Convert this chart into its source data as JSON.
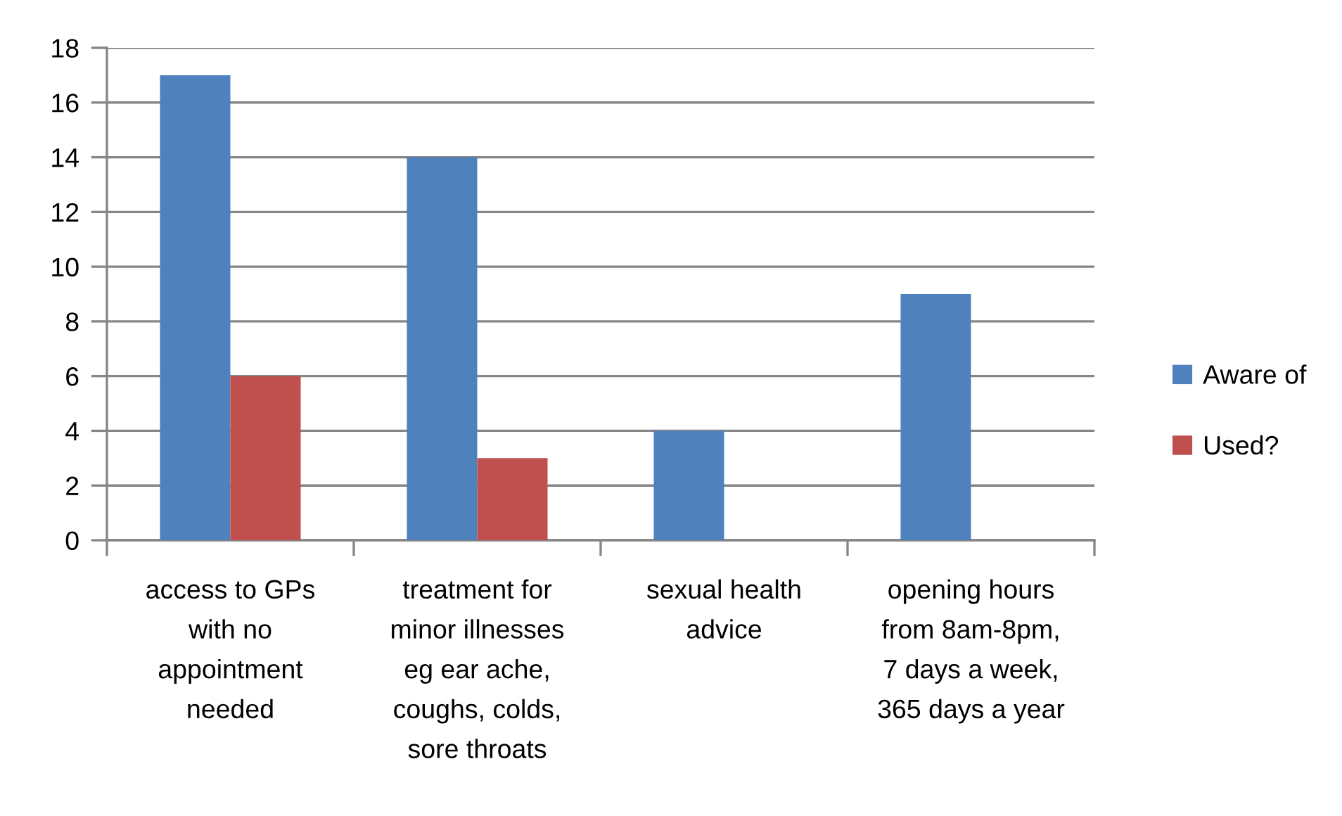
{
  "chart_data": {
    "type": "bar",
    "categories": [
      "access to GPs\nwith no\nappointment\nneeded",
      "treatment for\nminor illnesses\neg ear ache,\ncoughs, colds,\nsore throats",
      "sexual health\nadvice",
      "opening hours\nfrom 8am-8pm,\n7 days a week,\n365 days a year"
    ],
    "series": [
      {
        "name": "Aware of",
        "color": "#4f81bd",
        "values": [
          17,
          14,
          4,
          9
        ]
      },
      {
        "name": "Used?",
        "color": "#c0504d",
        "values": [
          6,
          3,
          null,
          null
        ]
      }
    ],
    "ylim": [
      0,
      18
    ],
    "yticks": [
      0,
      2,
      4,
      6,
      8,
      10,
      12,
      14,
      16,
      18
    ],
    "grid": "y",
    "legend": "right"
  }
}
